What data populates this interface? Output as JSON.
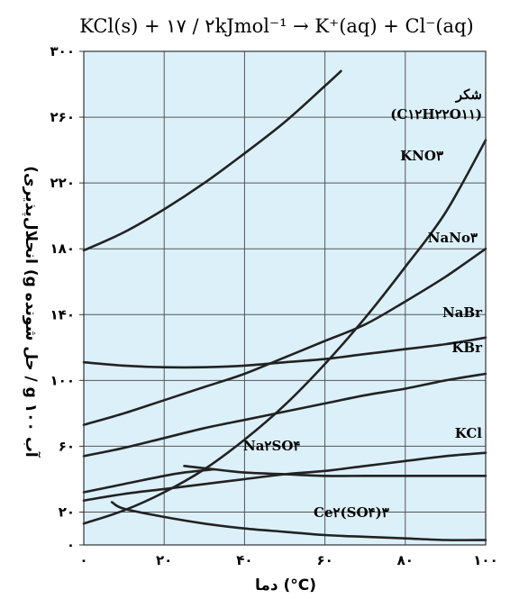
{
  "chart_data": {
    "type": "line",
    "title": "KCl(s) + ۱۷ / ۲kJmol⁻¹ → K⁺(aq) + Cl⁻(aq)",
    "xlabel": "دما (°C)",
    "ylabel": "(انحلال‌پذیری (g حل شونده / g ۱۰۰ آب",
    "xlim": [
      0,
      100
    ],
    "ylim": [
      0,
      300
    ],
    "x_ticks": [
      0,
      20,
      40,
      60,
      80,
      100
    ],
    "x_tick_labels": [
      "۰",
      "۲۰",
      "۴۰",
      "۶۰",
      "۸۰",
      "۱۰۰"
    ],
    "y_ticks": [
      0,
      20,
      60,
      100,
      140,
      180,
      220,
      260,
      300
    ],
    "y_tick_labels": [
      "۰",
      "۲۰",
      "۶۰",
      "۱۰۰",
      "۱۴۰",
      "۱۸۰",
      "۲۲۰",
      "۲۶۰",
      "۳۰۰"
    ],
    "grid": true,
    "background": "#dcf0fa",
    "line_color": "#222222",
    "series": [
      {
        "name": "شکر",
        "name_line2": "(C۱۲H۲۲O۱۱)",
        "x": [
          0,
          10,
          20,
          30,
          40,
          50,
          60,
          64
        ],
        "y": [
          179,
          190,
          204,
          220,
          238,
          257,
          279,
          288
        ]
      },
      {
        "name": "KNO۳",
        "x": [
          0,
          10,
          20,
          30,
          40,
          50,
          60,
          70,
          80,
          90,
          100
        ],
        "y": [
          13,
          21,
          32,
          46,
          64,
          85,
          110,
          138,
          169,
          202,
          246
        ]
      },
      {
        "name": "NaNo۳",
        "x": [
          0,
          10,
          20,
          30,
          40,
          50,
          60,
          70,
          80,
          90,
          100
        ],
        "y": [
          73,
          80,
          88,
          96,
          104,
          114,
          124,
          134,
          148,
          163,
          180
        ]
      },
      {
        "name": "NaBr",
        "x": [
          0,
          10,
          20,
          30,
          40,
          50,
          60,
          70,
          80,
          90,
          100
        ],
        "y": [
          111,
          109,
          108,
          108,
          109,
          111,
          113,
          116,
          119,
          122,
          126
        ]
      },
      {
        "name": "KBr",
        "x": [
          0,
          10,
          20,
          30,
          40,
          50,
          60,
          70,
          80,
          90,
          100
        ],
        "y": [
          54,
          59,
          65,
          71,
          76,
          81,
          86,
          91,
          95,
          100,
          104
        ]
      },
      {
        "name": "KCl",
        "x": [
          0,
          10,
          20,
          30,
          40,
          50,
          60,
          70,
          80,
          90,
          100
        ],
        "y": [
          27,
          31,
          34,
          37,
          40,
          43,
          45,
          48,
          51,
          54,
          56
        ]
      },
      {
        "name": "Na۲SO۴",
        "x": [
          25,
          32.4,
          40,
          50,
          60,
          70,
          80,
          90,
          100
        ],
        "y": [
          48,
          46,
          44,
          43,
          42,
          42,
          42,
          42,
          42
        ]
      },
      {
        "name": "",
        "x": [
          0,
          10,
          20,
          25,
          32.4
        ],
        "y": [
          32,
          37,
          42,
          44,
          46
        ]
      },
      {
        "name": "Ce۲(SO۴)۳",
        "x": [
          7,
          10,
          20,
          30,
          40,
          50,
          60,
          70,
          80,
          90,
          100
        ],
        "y": [
          26,
          22,
          17,
          13,
          10,
          8,
          6,
          5,
          4,
          3,
          3
        ]
      }
    ]
  }
}
